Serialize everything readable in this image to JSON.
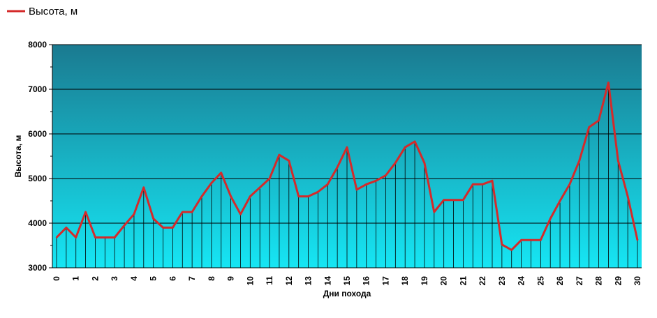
{
  "chart_data": {
    "type": "line",
    "legend": {
      "label": "Высота, м",
      "position": "top-left"
    },
    "xlabel": "Дни похода",
    "ylabel": "Высота, м",
    "xlim": [
      0,
      30
    ],
    "ylim": [
      3000,
      8000
    ],
    "x_ticks": [
      0,
      1,
      2,
      3,
      4,
      5,
      6,
      7,
      8,
      9,
      10,
      11,
      12,
      13,
      14,
      15,
      16,
      17,
      18,
      19,
      20,
      21,
      22,
      23,
      24,
      25,
      26,
      27,
      28,
      29,
      30
    ],
    "y_ticks": [
      3000,
      4000,
      5000,
      6000,
      7000,
      8000
    ],
    "grid": "horizontal",
    "colors": {
      "line": "#d42a2a",
      "bg_top": "#1a7a90",
      "bg_bottom": "#16e6f4",
      "drop": "#000000"
    },
    "series": [
      {
        "name": "Высота, м",
        "x": [
          0,
          0.5,
          1,
          1.5,
          2,
          2.5,
          3,
          3.5,
          4,
          4.5,
          5,
          5.5,
          6,
          6.5,
          7,
          7.5,
          8,
          8.5,
          9,
          9.5,
          10,
          10.5,
          11,
          11.5,
          12,
          12.5,
          13,
          13.5,
          14,
          14.5,
          15,
          15.5,
          16,
          16.5,
          17,
          17.5,
          18,
          18.5,
          19,
          19.5,
          20,
          20.5,
          21,
          21.5,
          22,
          22.5,
          23,
          23.5,
          24,
          24.5,
          25,
          25.5,
          26,
          26.5,
          27,
          27.5,
          28,
          28.5,
          29,
          29.5,
          30
        ],
        "y": [
          3680,
          3900,
          3680,
          4250,
          3680,
          3680,
          3680,
          3950,
          4200,
          4800,
          4100,
          3900,
          3900,
          4250,
          4250,
          4600,
          4900,
          5130,
          4600,
          4200,
          4600,
          4800,
          5000,
          5530,
          5400,
          4600,
          4600,
          4700,
          4870,
          5250,
          5700,
          4750,
          4870,
          4950,
          5070,
          5350,
          5700,
          5830,
          5350,
          4250,
          4520,
          4520,
          4520,
          4870,
          4870,
          4950,
          3520,
          3400,
          3620,
          3620,
          3620,
          4100,
          4500,
          4870,
          5400,
          6150,
          6300,
          7150,
          5400,
          4600,
          3620
        ]
      }
    ]
  }
}
